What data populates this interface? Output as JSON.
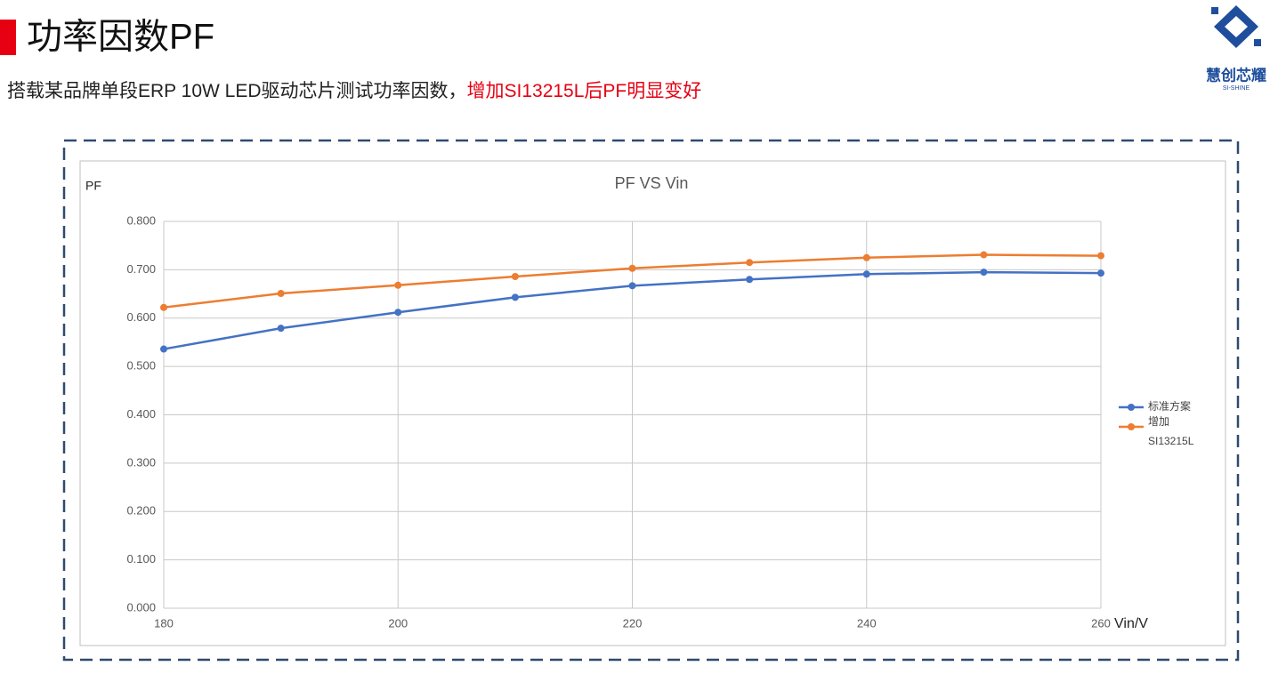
{
  "header": {
    "title": "功率因数PF",
    "subtitle": "搭载某品牌单段ERP 10W LED驱动芯片测试功率因数，",
    "highlight": "增加SI13215L后PF明显变好"
  },
  "logo": {
    "name": "慧创芯耀",
    "english": "SI-SHINE"
  },
  "chart_data": {
    "type": "line",
    "title": "PF VS Vin",
    "y_label": "PF",
    "x_label": "Vin/V",
    "x": [
      180,
      190,
      200,
      210,
      220,
      230,
      240,
      250,
      260
    ],
    "series": [
      {
        "name": "标准方案",
        "color": "#4472c4",
        "values": [
          0.536,
          0.579,
          0.612,
          0.643,
          0.667,
          0.68,
          0.691,
          0.695,
          0.693
        ]
      },
      {
        "name": "增加SI13215L",
        "color": "#ed7d31",
        "values": [
          0.622,
          0.651,
          0.668,
          0.686,
          0.703,
          0.715,
          0.725,
          0.731,
          0.729
        ]
      }
    ],
    "xlim": [
      180,
      260
    ],
    "xticks": [
      180,
      200,
      220,
      240,
      260
    ],
    "ylim": [
      0,
      0.8
    ],
    "yticks": [
      {
        "value": 0,
        "label": "0.000"
      },
      {
        "value": 0.1,
        "label": "0.100"
      },
      {
        "value": 0.2,
        "label": "0.200"
      },
      {
        "value": 0.3,
        "label": "0.300"
      },
      {
        "value": 0.4,
        "label": "0.400"
      },
      {
        "value": 0.5,
        "label": "0.500"
      },
      {
        "value": 0.6,
        "label": "0.600"
      },
      {
        "value": 0.7,
        "label": "0.700"
      },
      {
        "value": 0.8,
        "label": "0.800"
      }
    ],
    "grid": true,
    "legend": "right"
  }
}
